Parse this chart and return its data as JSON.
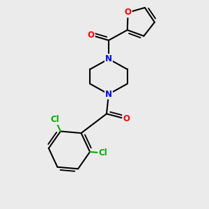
{
  "bg_color": "#ebebeb",
  "bond_color": "#000000",
  "bond_width": 1.5,
  "atom_colors": {
    "O": "#ff0000",
    "N": "#0000ff",
    "Cl": "#00aa00"
  },
  "font_size": 8.5
}
